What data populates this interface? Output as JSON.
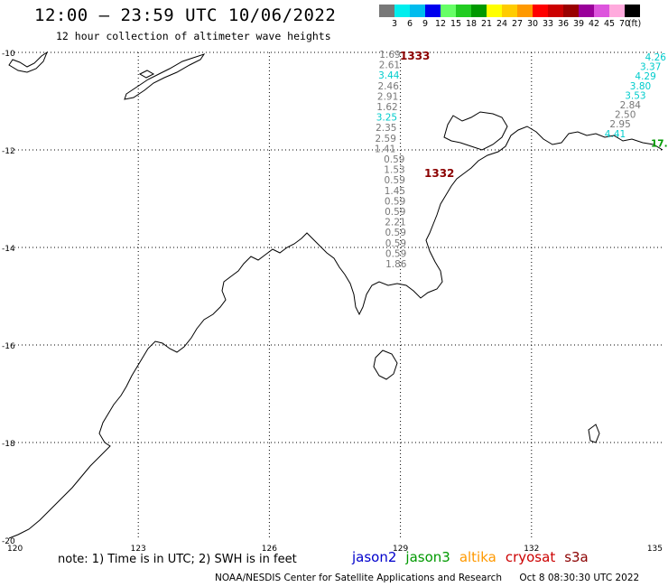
{
  "title": "12:00 – 23:59 UTC 10/06/2022",
  "subtitle": "12 hour collection of altimeter wave heights",
  "legend": {
    "unit": "(ft)",
    "bins": [
      {
        "label": "3",
        "color": "#787878"
      },
      {
        "label": "6",
        "color": "#00eeee"
      },
      {
        "label": "9",
        "color": "#00bcee"
      },
      {
        "label": "12",
        "color": "#0000ee"
      },
      {
        "label": "15",
        "color": "#66ff66"
      },
      {
        "label": "18",
        "color": "#22cc22"
      },
      {
        "label": "21",
        "color": "#009900"
      },
      {
        "label": "24",
        "color": "#ffff00"
      },
      {
        "label": "27",
        "color": "#ffcc00"
      },
      {
        "label": "30",
        "color": "#ff9900"
      },
      {
        "label": "33",
        "color": "#ff0000"
      },
      {
        "label": "36",
        "color": "#cc0000"
      },
      {
        "label": "39",
        "color": "#990000"
      },
      {
        "label": "42",
        "color": "#990099"
      },
      {
        "label": "45",
        "color": "#dd55dd"
      },
      {
        "label": "70",
        "color": "#ffaadd"
      },
      {
        "label": "",
        "color": "#000000"
      }
    ]
  },
  "axes": {
    "lon_ticks": [
      "120",
      "123",
      "126",
      "129",
      "132",
      "135"
    ],
    "lat_ticks": [
      "-10",
      "-12",
      "-14",
      "-16",
      "-18",
      "-20"
    ]
  },
  "passes": [
    {
      "id": "1333",
      "color": "#8b0000"
    },
    {
      "id": "1332",
      "color": "#8b0000"
    }
  ],
  "track_main": [
    {
      "v": "1.69",
      "c": "#787878"
    },
    {
      "v": "2.61",
      "c": "#787878"
    },
    {
      "v": "3.44",
      "c": "#00cccc"
    },
    {
      "v": "2.46",
      "c": "#787878"
    },
    {
      "v": "2.91",
      "c": "#787878"
    },
    {
      "v": "1.62",
      "c": "#787878"
    },
    {
      "v": "3.25",
      "c": "#00cccc"
    },
    {
      "v": "2.35",
      "c": "#787878"
    },
    {
      "v": "2.59",
      "c": "#787878"
    },
    {
      "v": "1.41",
      "c": "#787878"
    },
    {
      "v": "0.59",
      "c": "#787878"
    },
    {
      "v": "1.53",
      "c": "#787878"
    },
    {
      "v": "0.59",
      "c": "#787878"
    },
    {
      "v": "1.45",
      "c": "#787878"
    },
    {
      "v": "0.59",
      "c": "#787878"
    },
    {
      "v": "0.59",
      "c": "#787878"
    },
    {
      "v": "2.21",
      "c": "#787878"
    },
    {
      "v": "0.59",
      "c": "#787878"
    },
    {
      "v": "0.59",
      "c": "#787878"
    },
    {
      "v": "0.59",
      "c": "#787878"
    },
    {
      "v": "1.86",
      "c": "#787878"
    }
  ],
  "track_east": [
    {
      "v": "4.26",
      "c": "#00cccc"
    },
    {
      "v": "3.37",
      "c": "#00cccc"
    },
    {
      "v": "4.29",
      "c": "#00cccc"
    },
    {
      "v": "3.80",
      "c": "#00cccc"
    },
    {
      "v": "3.53",
      "c": "#00cccc"
    },
    {
      "v": "2.84",
      "c": "#787878"
    },
    {
      "v": "2.50",
      "c": "#787878"
    },
    {
      "v": "2.95",
      "c": "#787878"
    },
    {
      "v": "4.41",
      "c": "#00cccc"
    },
    {
      "v": "17.",
      "c": "#009900"
    }
  ],
  "note": "note: 1) Time is in UTC; 2) SWH is in feet",
  "satellites": [
    {
      "name": "jason2",
      "color": "#0000cc"
    },
    {
      "name": "jason3",
      "color": "#009900"
    },
    {
      "name": "altika",
      "color": "#ff9900"
    },
    {
      "name": "cryosat",
      "color": "#cc0000"
    },
    {
      "name": "s3a",
      "color": "#8b0000"
    }
  ],
  "credit": {
    "org": "NOAA/NESDIS Center for Satellite Applications and Research",
    "generated": "Oct  8 08:30:30 UTC 2022"
  }
}
